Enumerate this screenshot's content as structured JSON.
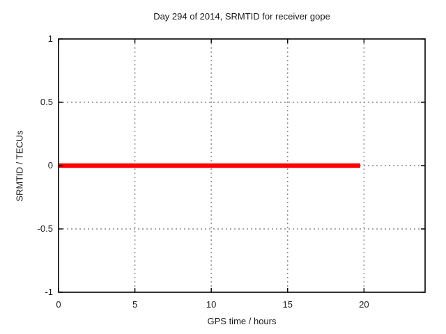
{
  "chart_data": {
    "type": "line",
    "title": "Day 294 of 2014, SRMTID for receiver gope",
    "xlabel": "GPS time / hours",
    "ylabel": "SRMTID / TECUs",
    "xlim": [
      0,
      24
    ],
    "ylim": [
      -1,
      1
    ],
    "xticks": [
      0,
      5,
      10,
      15,
      20
    ],
    "xtick_labels": [
      "0",
      "5",
      "10",
      "15",
      "20"
    ],
    "yticks": [
      -1,
      -0.5,
      0,
      0.5,
      1
    ],
    "ytick_labels": [
      "-1",
      "-0.5",
      "0",
      "0.5",
      "1"
    ],
    "grid": true,
    "legend_position": "none",
    "series": [
      {
        "name": "SRMTID",
        "color": "#ff0000",
        "x": [
          0,
          19.75
        ],
        "y": [
          0,
          0
        ],
        "linewidth": 6.5
      }
    ],
    "colors": {
      "background": "#ffffff",
      "border": "#000000",
      "grid": "#888888",
      "text": "#1a1a1a"
    }
  }
}
